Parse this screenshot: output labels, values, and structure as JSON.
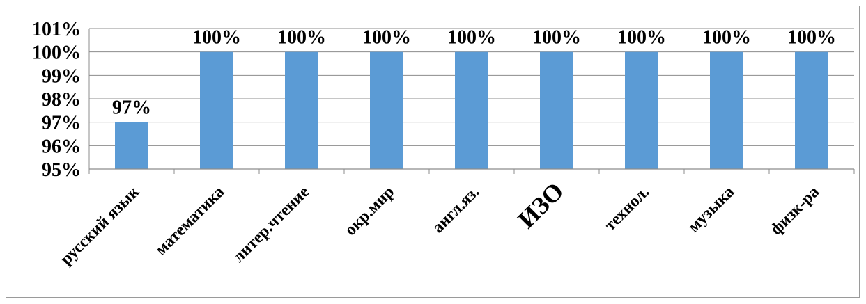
{
  "chart_data": {
    "type": "bar",
    "categories": [
      "русский язык",
      "математика",
      "литер.чтение",
      "окр.мир",
      "англ.яз.",
      "ИЗО",
      "технол.",
      "музыка",
      "физк-ра"
    ],
    "values": [
      97,
      100,
      100,
      100,
      100,
      100,
      100,
      100,
      100
    ],
    "data_labels": [
      "97%",
      "100%",
      "100%",
      "100%",
      "100%",
      "100%",
      "100%",
      "100%",
      "100%"
    ],
    "y_ticks": [
      95,
      96,
      97,
      98,
      99,
      100,
      101
    ],
    "y_tick_labels": [
      "95%",
      "96%",
      "97%",
      "98%",
      "99%",
      "100%",
      "101%"
    ],
    "ylim": [
      95,
      101
    ],
    "title": "",
    "xlabel": "",
    "ylabel": "",
    "grid": true,
    "legend": "none",
    "bar_color": "#5B9BD5",
    "grid_color": "#8C8C8C"
  }
}
